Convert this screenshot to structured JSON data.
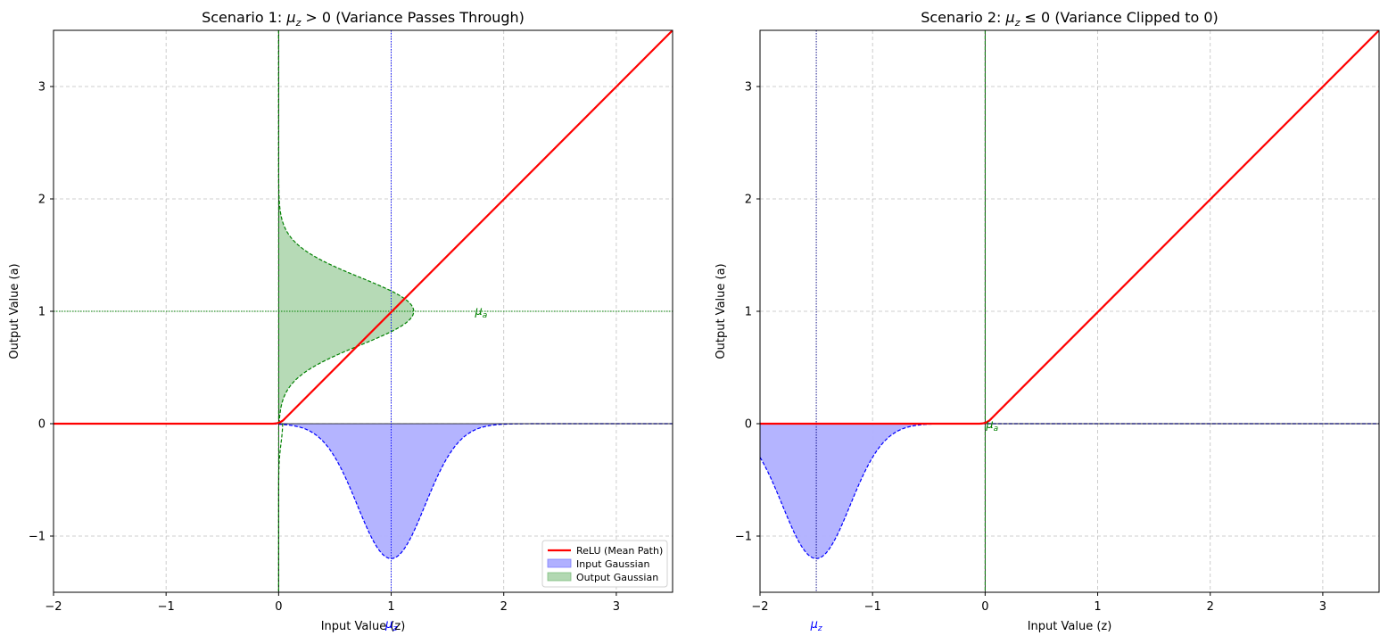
{
  "chart_data": [
    {
      "type": "line",
      "title_prefix": "Scenario 1: ",
      "title_math": "μ",
      "title_sub": "z",
      "title_rel": " > 0",
      "title_suffix": " (Variance Passes Through)",
      "xlabel": "Input Value (z)",
      "ylabel": "Output Value (a)",
      "xlim": [
        -2,
        3.5
      ],
      "ylim": [
        -1.5,
        3.5
      ],
      "xticks": [
        -2,
        -1,
        0,
        1,
        2,
        3
      ],
      "yticks": [
        -1,
        0,
        1,
        2,
        3
      ],
      "xtick_labels": [
        "−2",
        "−1",
        "0",
        "1",
        "2",
        "3"
      ],
      "ytick_labels": [
        "−1",
        "0",
        "1",
        "2",
        "3"
      ],
      "grid": true,
      "mu_z": 1.0,
      "sigma_z": 0.3,
      "mu_a": 1.0,
      "input_gaussian_peak": 1.2,
      "output_gaussian_peak_x": 1.2,
      "mu_z_label": "μ",
      "mu_z_sub": "z",
      "mu_a_label": "μ",
      "mu_a_sub": "a",
      "mu_a_label_at": [
        1.8,
        1.0
      ],
      "legend": {
        "position": "lower-right",
        "entries": [
          "ReLU (Mean Path)",
          "Input Gaussian",
          "Output Gaussian"
        ]
      },
      "series": [
        {
          "name": "ReLU (Mean Path)",
          "color": "#ff0000",
          "points": [
            [
              -2,
              0
            ],
            [
              0,
              0
            ],
            [
              3.5,
              3.5
            ]
          ]
        },
        {
          "name": "Input Gaussian",
          "color": "#0000ff",
          "fill": "#b0b0ff"
        },
        {
          "name": "Output Gaussian",
          "color": "#008000",
          "fill": "#b2d8b2"
        }
      ]
    },
    {
      "type": "line",
      "title_prefix": "Scenario 2: ",
      "title_math": "μ",
      "title_sub": "z",
      "title_rel": " ≤ 0",
      "title_suffix": " (Variance Clipped to 0)",
      "xlabel": "Input Value (z)",
      "ylabel": "Output Value (a)",
      "xlim": [
        -2,
        3.5
      ],
      "ylim": [
        -1.5,
        3.5
      ],
      "xticks": [
        -2,
        -1,
        0,
        1,
        2,
        3
      ],
      "yticks": [
        -1,
        0,
        1,
        2,
        3
      ],
      "xtick_labels": [
        "−2",
        "−1",
        "0",
        "1",
        "2",
        "3"
      ],
      "ytick_labels": [
        "−1",
        "0",
        "1",
        "2",
        "3"
      ],
      "grid": true,
      "mu_z": -1.5,
      "sigma_z": 0.3,
      "mu_a": 0.0,
      "input_gaussian_peak": 1.2,
      "mu_z_label": "μ",
      "mu_z_sub": "z",
      "mu_a_label": "μ",
      "mu_a_sub": "a",
      "mu_a_label_at": [
        0.0,
        0.0
      ],
      "series": [
        {
          "name": "ReLU (Mean Path)",
          "color": "#ff0000",
          "points": [
            [
              -2,
              0
            ],
            [
              0,
              0
            ],
            [
              3.5,
              3.5
            ]
          ]
        },
        {
          "name": "Input Gaussian",
          "color": "#0000ff",
          "fill": "#b0b0ff"
        },
        {
          "name": "Output Gaussian",
          "color": "#008000"
        }
      ]
    }
  ]
}
